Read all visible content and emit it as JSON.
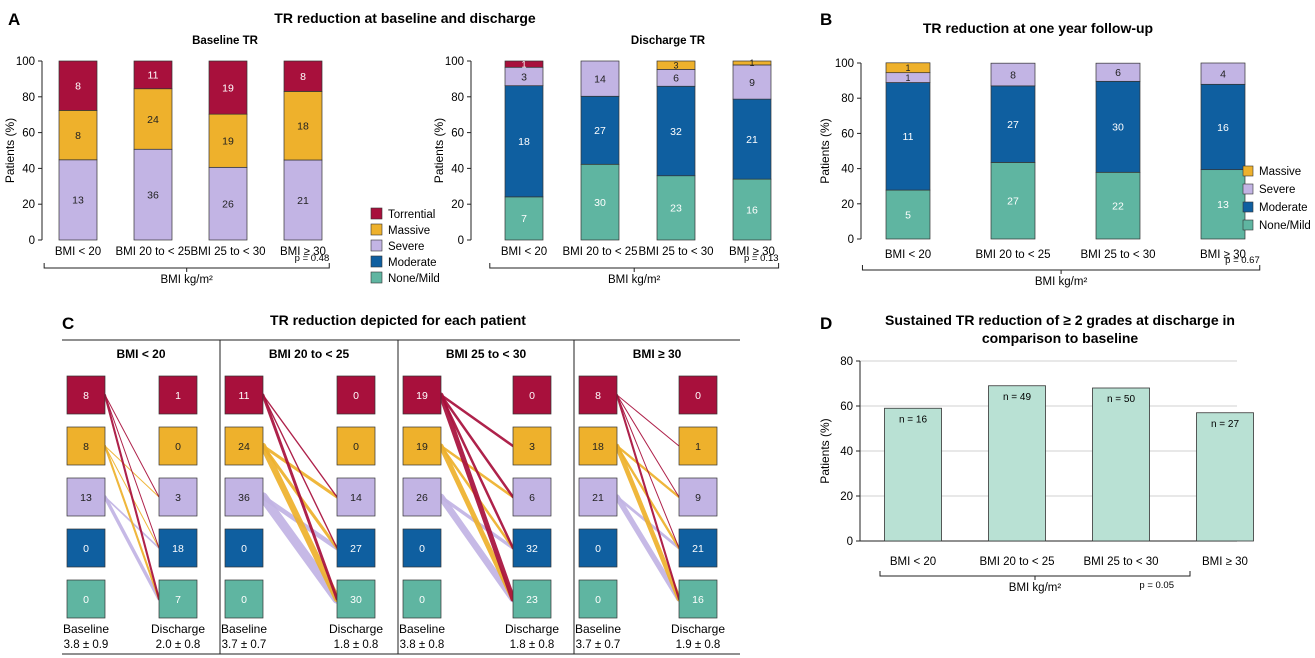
{
  "colors": {
    "torrential": "#a8103c",
    "massive": "#eeb12c",
    "severe": "#c2b4e4",
    "moderate": "#0f5fa0",
    "none_mild": "#5fb5a1",
    "sustained_bar": "#b9e1d4",
    "axis": "#222222",
    "grid": "#d0d0d0"
  },
  "panels": {
    "A": {
      "letter": "A",
      "title": "TR reduction at baseline and discharge",
      "xlabel": "BMI kg/m²",
      "legend": [
        "Torrential",
        "Massive",
        "Severe",
        "Moderate",
        "None/Mild"
      ]
    },
    "B": {
      "letter": "B",
      "title": "TR reduction at one year follow-up",
      "xlabel": "BMI kg/m²",
      "pvalue": "p = 0.67",
      "legend": [
        "Massive",
        "Severe",
        "Moderate",
        "None/Mild"
      ]
    },
    "C": {
      "letter": "C",
      "title": "TR reduction depicted for each patient",
      "groups": [
        {
          "title": "BMI < 20",
          "baseline_label": "Baseline",
          "baseline_stat": "3.8 ± 0.9",
          "discharge_label": "Discharge",
          "discharge_stat": "2.0 ± 0.8",
          "baseline": [
            8,
            8,
            13,
            0,
            0
          ],
          "discharge": [
            1,
            0,
            3,
            18,
            7
          ]
        },
        {
          "title": "BMI 20 to < 25",
          "baseline_label": "Baseline",
          "baseline_stat": "3.7 ± 0.7",
          "discharge_label": "Discharge",
          "discharge_stat": "1.8 ± 0.8",
          "baseline": [
            11,
            24,
            36,
            0,
            0
          ],
          "discharge": [
            0,
            0,
            14,
            27,
            30
          ]
        },
        {
          "title": "BMI 25 to < 30",
          "baseline_label": "Baseline",
          "baseline_stat": "3.8 ± 0.8",
          "discharge_label": "Discharge",
          "discharge_stat": "1.8 ± 0.8",
          "baseline": [
            19,
            19,
            26,
            0,
            0
          ],
          "discharge": [
            0,
            3,
            6,
            32,
            23
          ]
        },
        {
          "title": "BMI ≥ 30",
          "baseline_label": "Baseline",
          "baseline_stat": "3.7 ± 0.7",
          "discharge_label": "Discharge",
          "discharge_stat": "1.9 ± 0.8",
          "baseline": [
            8,
            18,
            21,
            0,
            0
          ],
          "discharge": [
            0,
            1,
            9,
            21,
            16
          ]
        }
      ]
    },
    "D": {
      "letter": "D",
      "title_line1": "Sustained TR reduction of ≥ 2 grades at discharge in",
      "title_line2": "comparison to baseline",
      "xlabel": "BMI kg/m²",
      "pvalue": "p = 0.05"
    }
  },
  "chart_data": [
    {
      "id": "baseline",
      "type": "bar",
      "stacked": true,
      "title": "Baseline TR",
      "categories": [
        "BMI < 20",
        "BMI 20 to < 25",
        "BMI 25 to < 30",
        "BMI ≥ 30"
      ],
      "xlabel": "BMI kg/m²",
      "ylabel": "Patients (%)",
      "ylim": [
        0,
        100
      ],
      "yticks": [
        0,
        20,
        40,
        60,
        80,
        100
      ],
      "pvalue": "p = 0.48",
      "series": [
        {
          "name": "None/Mild",
          "key": "none_mild",
          "pct": [
            0,
            0,
            0,
            0
          ],
          "labels": [
            "",
            "",
            "",
            ""
          ]
        },
        {
          "name": "Moderate",
          "key": "moderate",
          "pct": [
            0,
            0,
            0,
            0
          ],
          "labels": [
            "",
            "",
            "",
            ""
          ]
        },
        {
          "name": "Severe",
          "key": "severe",
          "pct": [
            44.8,
            50.7,
            40.6,
            44.7
          ],
          "labels": [
            "13",
            "36",
            "26",
            "21"
          ]
        },
        {
          "name": "Massive",
          "key": "massive",
          "pct": [
            27.6,
            33.8,
            29.7,
            38.3
          ],
          "labels": [
            "8",
            "24",
            "19",
            "18"
          ]
        },
        {
          "name": "Torrential",
          "key": "torrential",
          "pct": [
            27.6,
            15.5,
            29.7,
            17.0
          ],
          "labels": [
            "8",
            "11",
            "19",
            "8"
          ]
        }
      ]
    },
    {
      "id": "discharge",
      "type": "bar",
      "stacked": true,
      "title": "Discharge TR",
      "categories": [
        "BMI < 20",
        "BMI 20 to < 25",
        "BMI 25 to < 30",
        "BMI ≥ 30"
      ],
      "xlabel": "BMI kg/m²",
      "ylabel": "Patients (%)",
      "ylim": [
        0,
        100
      ],
      "yticks": [
        0,
        20,
        40,
        60,
        80,
        100
      ],
      "pvalue": "p = 0.13",
      "series": [
        {
          "name": "None/Mild",
          "key": "none_mild",
          "pct": [
            24.1,
            42.3,
            35.9,
            34.0
          ],
          "labels": [
            "7",
            "30",
            "23",
            "16"
          ]
        },
        {
          "name": "Moderate",
          "key": "moderate",
          "pct": [
            62.1,
            38.0,
            50.0,
            44.7
          ],
          "labels": [
            "18",
            "27",
            "32",
            "21"
          ]
        },
        {
          "name": "Severe",
          "key": "severe",
          "pct": [
            10.3,
            19.7,
            9.4,
            19.1
          ],
          "labels": [
            "3",
            "14",
            "6",
            "9"
          ]
        },
        {
          "name": "Massive",
          "key": "massive",
          "pct": [
            0,
            0,
            4.7,
            2.2
          ],
          "labels": [
            "",
            "",
            "3",
            "1"
          ]
        },
        {
          "name": "Torrential",
          "key": "torrential",
          "pct": [
            3.5,
            0,
            0,
            0
          ],
          "labels": [
            "1",
            "",
            "",
            ""
          ]
        }
      ]
    },
    {
      "id": "followup",
      "type": "bar",
      "stacked": true,
      "title": "TR reduction at one year follow-up",
      "categories": [
        "BMI < 20",
        "BMI 20 to < 25",
        "BMI 25 to < 30",
        "BMI ≥ 30"
      ],
      "xlabel": "BMI kg/m²",
      "ylabel": "Patients (%)",
      "ylim": [
        0,
        100
      ],
      "yticks": [
        0,
        20,
        40,
        60,
        80,
        100
      ],
      "pvalue": "p = 0.67",
      "series": [
        {
          "name": "None/Mild",
          "key": "none_mild",
          "pct": [
            27.8,
            43.5,
            37.9,
            39.4
          ],
          "labels": [
            "5",
            "27",
            "22",
            "13"
          ]
        },
        {
          "name": "Moderate",
          "key": "moderate",
          "pct": [
            61.1,
            43.5,
            51.7,
            48.5
          ],
          "labels": [
            "11",
            "27",
            "30",
            "16"
          ]
        },
        {
          "name": "Severe",
          "key": "severe",
          "pct": [
            5.6,
            12.9,
            10.3,
            12.1
          ],
          "labels": [
            "1",
            "8",
            "6",
            "4"
          ]
        },
        {
          "name": "Massive",
          "key": "massive",
          "pct": [
            5.6,
            0,
            0,
            0
          ],
          "labels": [
            "1",
            "",
            "",
            ""
          ]
        }
      ]
    },
    {
      "id": "sustained",
      "type": "bar",
      "title": "Sustained TR reduction of ≥ 2 grades at discharge in comparison to baseline",
      "categories": [
        "BMI < 20",
        "BMI 20 to < 25",
        "BMI 25 to < 30",
        "BMI ≥ 30"
      ],
      "values": [
        59,
        69,
        68,
        57
      ],
      "labels": [
        "n = 16",
        "n = 49",
        "n = 50",
        "n = 27"
      ],
      "xlabel": "BMI kg/m²",
      "ylabel": "Patients (%)",
      "ylim": [
        0,
        80
      ],
      "yticks": [
        0,
        20,
        40,
        60,
        80
      ],
      "grid": true,
      "pvalue": "p = 0.05"
    }
  ]
}
